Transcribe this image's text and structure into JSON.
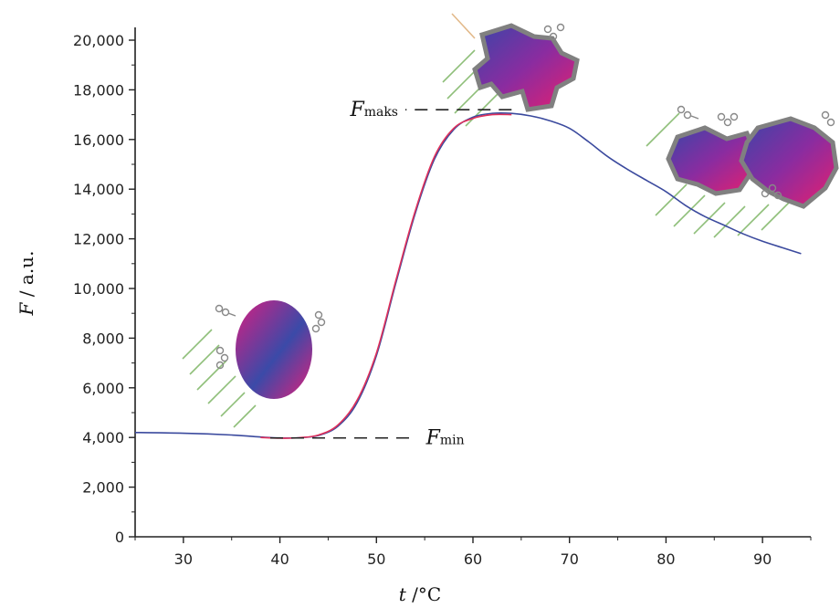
{
  "chart_data": {
    "type": "line",
    "xlabel_var": "t",
    "xlabel_unit": " /°C",
    "ylabel_var": "F",
    "ylabel_unit": " / a.u.",
    "xlim": [
      25,
      95
    ],
    "ylim": [
      0,
      20000
    ],
    "x_ticks": [
      30,
      40,
      50,
      60,
      70,
      80,
      90
    ],
    "y_ticks": [
      0,
      2000,
      4000,
      6000,
      8000,
      10000,
      12000,
      14000,
      16000,
      18000,
      20000
    ],
    "y_tick_labels": [
      "0",
      "2,000",
      "4,000",
      "6,000",
      "8,000",
      "10,000",
      "12,000",
      "14,000",
      "16,000",
      "18,000",
      "20,000"
    ],
    "grid": false,
    "series": [
      {
        "color": "#3b4a9e",
        "points": [
          [
            25,
            4200
          ],
          [
            30,
            4170
          ],
          [
            35,
            4100
          ],
          [
            38,
            4020
          ],
          [
            40,
            3980
          ],
          [
            42,
            3990
          ],
          [
            44,
            4080
          ],
          [
            46,
            4450
          ],
          [
            48,
            5400
          ],
          [
            50,
            7300
          ],
          [
            52,
            10200
          ],
          [
            54,
            13000
          ],
          [
            56,
            15200
          ],
          [
            58,
            16400
          ],
          [
            60,
            16900
          ],
          [
            62,
            17050
          ],
          [
            64,
            17050
          ],
          [
            66,
            16950
          ],
          [
            68,
            16750
          ],
          [
            70,
            16450
          ],
          [
            72,
            15900
          ],
          [
            74,
            15300
          ],
          [
            76,
            14800
          ],
          [
            78,
            14350
          ],
          [
            80,
            13900
          ],
          [
            82,
            13350
          ],
          [
            84,
            12900
          ],
          [
            86,
            12550
          ],
          [
            88,
            12200
          ],
          [
            90,
            11900
          ],
          [
            92,
            11650
          ],
          [
            94,
            11400
          ]
        ]
      },
      {
        "color": "#e0305a",
        "points": [
          [
            38,
            4000
          ],
          [
            40,
            3970
          ],
          [
            42,
            3990
          ],
          [
            44,
            4100
          ],
          [
            46,
            4500
          ],
          [
            48,
            5500
          ],
          [
            50,
            7400
          ],
          [
            52,
            10300
          ],
          [
            54,
            13100
          ],
          [
            56,
            15300
          ],
          [
            58,
            16450
          ],
          [
            60,
            16850
          ],
          [
            62,
            17000
          ],
          [
            64,
            17000
          ]
        ]
      }
    ],
    "annotations": [
      {
        "var": "F",
        "sub": "maks",
        "y": 17200,
        "line_x": [
          64,
          53
        ]
      },
      {
        "var": "F",
        "sub": "min",
        "y": 3980,
        "line_x": [
          39,
          54
        ]
      }
    ]
  }
}
